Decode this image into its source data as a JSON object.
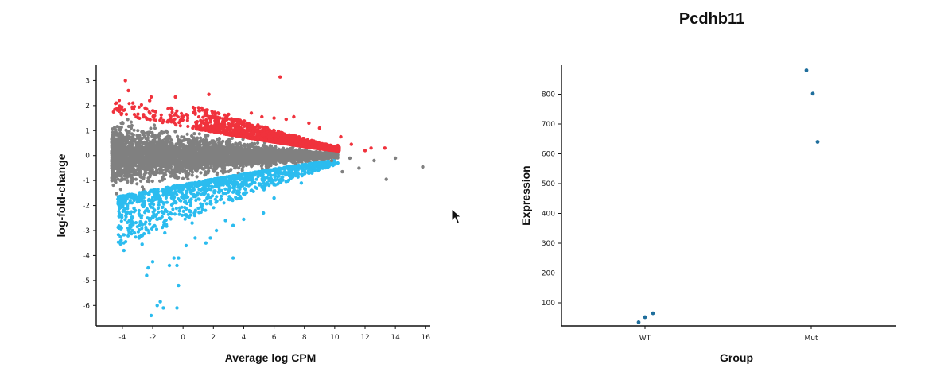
{
  "chart_data": [
    {
      "type": "scatter",
      "title": "",
      "xlabel": "Average log CPM",
      "ylabel": "log-fold-change",
      "xlim": [
        -5.2,
        16.3
      ],
      "ylim": [
        -6.5,
        3.3
      ],
      "x_ticks": [
        -4,
        -2,
        0,
        2,
        4,
        6,
        8,
        10,
        12,
        14,
        16
      ],
      "y_ticks": [
        3,
        2,
        1,
        0,
        -1,
        -2,
        -3,
        -4,
        -5,
        -6
      ],
      "grid": false,
      "colors": {
        "up": "#f0323c",
        "down": "#2bbcef",
        "ns": "#808080"
      },
      "cloud": {
        "points": 4200,
        "x_range": [
          -4.7,
          10.2
        ],
        "spread_at_min": 1.5,
        "spread_at_max": 0.15
      },
      "series": [
        {
          "group": "up",
          "points": [
            [
              -3.8,
              3.0
            ],
            [
              6.4,
              3.15
            ],
            [
              -3.6,
              2.6
            ],
            [
              -2.1,
              2.35
            ],
            [
              -0.5,
              2.35
            ],
            [
              1.7,
              2.45
            ],
            [
              -3.3,
              2.1
            ],
            [
              -2.2,
              2.2
            ],
            [
              -4.4,
              2.1
            ],
            [
              -4.2,
              1.9
            ],
            [
              -2.5,
              1.9
            ],
            [
              -1.8,
              1.75
            ],
            [
              -0.8,
              1.9
            ],
            [
              0.3,
              1.6
            ],
            [
              1.5,
              1.8
            ],
            [
              2.3,
              1.7
            ],
            [
              3.0,
              1.65
            ],
            [
              4.5,
              1.7
            ],
            [
              5.2,
              1.55
            ],
            [
              6.0,
              1.5
            ],
            [
              6.8,
              1.45
            ],
            [
              7.3,
              1.55
            ],
            [
              8.3,
              1.3
            ],
            [
              9.0,
              1.1
            ],
            [
              10.4,
              0.75
            ],
            [
              11.1,
              0.45
            ],
            [
              12.0,
              0.2
            ],
            [
              12.4,
              0.3
            ],
            [
              13.3,
              0.3
            ],
            [
              10.2,
              0.4
            ]
          ]
        },
        {
          "group": "down",
          "points": [
            [
              -2.1,
              -6.4
            ],
            [
              -1.3,
              -6.1
            ],
            [
              -0.4,
              -6.1
            ],
            [
              -1.5,
              -5.85
            ],
            [
              -1.7,
              -6.0
            ],
            [
              -0.3,
              -5.2
            ],
            [
              -2.4,
              -4.8
            ],
            [
              -2.3,
              -4.5
            ],
            [
              -0.9,
              -4.4
            ],
            [
              -0.3,
              -4.1
            ],
            [
              -0.6,
              -4.1
            ],
            [
              -0.4,
              -4.4
            ],
            [
              -2.0,
              -4.25
            ],
            [
              3.3,
              -4.1
            ],
            [
              -3.9,
              -3.8
            ],
            [
              -2.7,
              -3.55
            ],
            [
              -3.2,
              -3.1
            ],
            [
              0.8,
              -3.3
            ],
            [
              1.8,
              -3.3
            ],
            [
              1.5,
              -3.5
            ],
            [
              2.2,
              -3.0
            ],
            [
              3.3,
              -2.8
            ],
            [
              4.0,
              -2.55
            ],
            [
              5.3,
              -2.3
            ],
            [
              6.0,
              -1.7
            ],
            [
              7.8,
              -1.1
            ],
            [
              8.5,
              -0.7
            ],
            [
              9.2,
              -0.5
            ],
            [
              10.2,
              -0.3
            ],
            [
              -3.5,
              -2.9
            ],
            [
              -2.9,
              -3.3
            ],
            [
              -1.2,
              -3.1
            ],
            [
              0.2,
              -3.6
            ],
            [
              0.6,
              -2.7
            ],
            [
              2.8,
              -2.6
            ]
          ]
        },
        {
          "group": "ns",
          "points": [
            [
              14.0,
              -0.1
            ],
            [
              15.8,
              -0.45
            ],
            [
              13.4,
              -0.95
            ],
            [
              11.6,
              -0.5
            ],
            [
              10.5,
              -0.65
            ],
            [
              11.0,
              -0.1
            ],
            [
              12.6,
              -0.2
            ],
            [
              9.8,
              -0.2
            ]
          ]
        }
      ]
    },
    {
      "type": "scatter",
      "title": "Pcdhb11",
      "xlabel": "Group",
      "ylabel": "Expression",
      "categories": [
        "WT",
        "Mut"
      ],
      "ylim": [
        50,
        900
      ],
      "y_ticks": [
        100,
        200,
        300,
        400,
        500,
        600,
        700,
        800
      ],
      "grid": false,
      "colors": {
        "point": "#1f6e9c"
      },
      "series": [
        {
          "group": "WT",
          "points": [
            [
              -0.04,
              35
            ],
            [
              0.0,
              52
            ],
            [
              0.05,
              65
            ]
          ]
        },
        {
          "group": "Mut",
          "points": [
            [
              -0.03,
              880
            ],
            [
              0.01,
              802
            ],
            [
              0.04,
              640
            ]
          ]
        }
      ]
    }
  ]
}
